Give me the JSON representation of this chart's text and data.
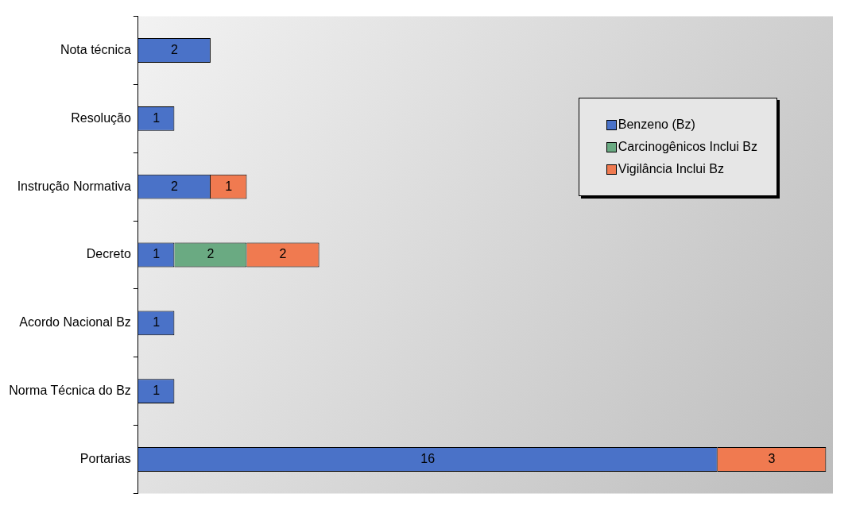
{
  "chart_data": {
    "type": "bar",
    "orientation": "horizontal",
    "stacked": true,
    "data_labels": true,
    "legend": "top right",
    "grid": false,
    "categories": [
      "Nota técnica",
      "Resolução",
      "Instrução Normativa",
      "Decreto",
      "Acordo Nacional Bz",
      "Norma Técnica do Bz",
      "Portarias"
    ],
    "series": [
      {
        "name": "Benzeno (Bz)",
        "color": "#4a72c8",
        "values": [
          2,
          1,
          2,
          1,
          1,
          1,
          16
        ]
      },
      {
        "name": "Carcinogênicos Inclui Bz",
        "color": "#6aaa82",
        "values": [
          null,
          null,
          null,
          2,
          null,
          null,
          null
        ]
      },
      {
        "name": "Vigilância Inclui Bz",
        "color": "#f07a50",
        "values": [
          null,
          null,
          1,
          2,
          null,
          null,
          3
        ]
      }
    ]
  }
}
